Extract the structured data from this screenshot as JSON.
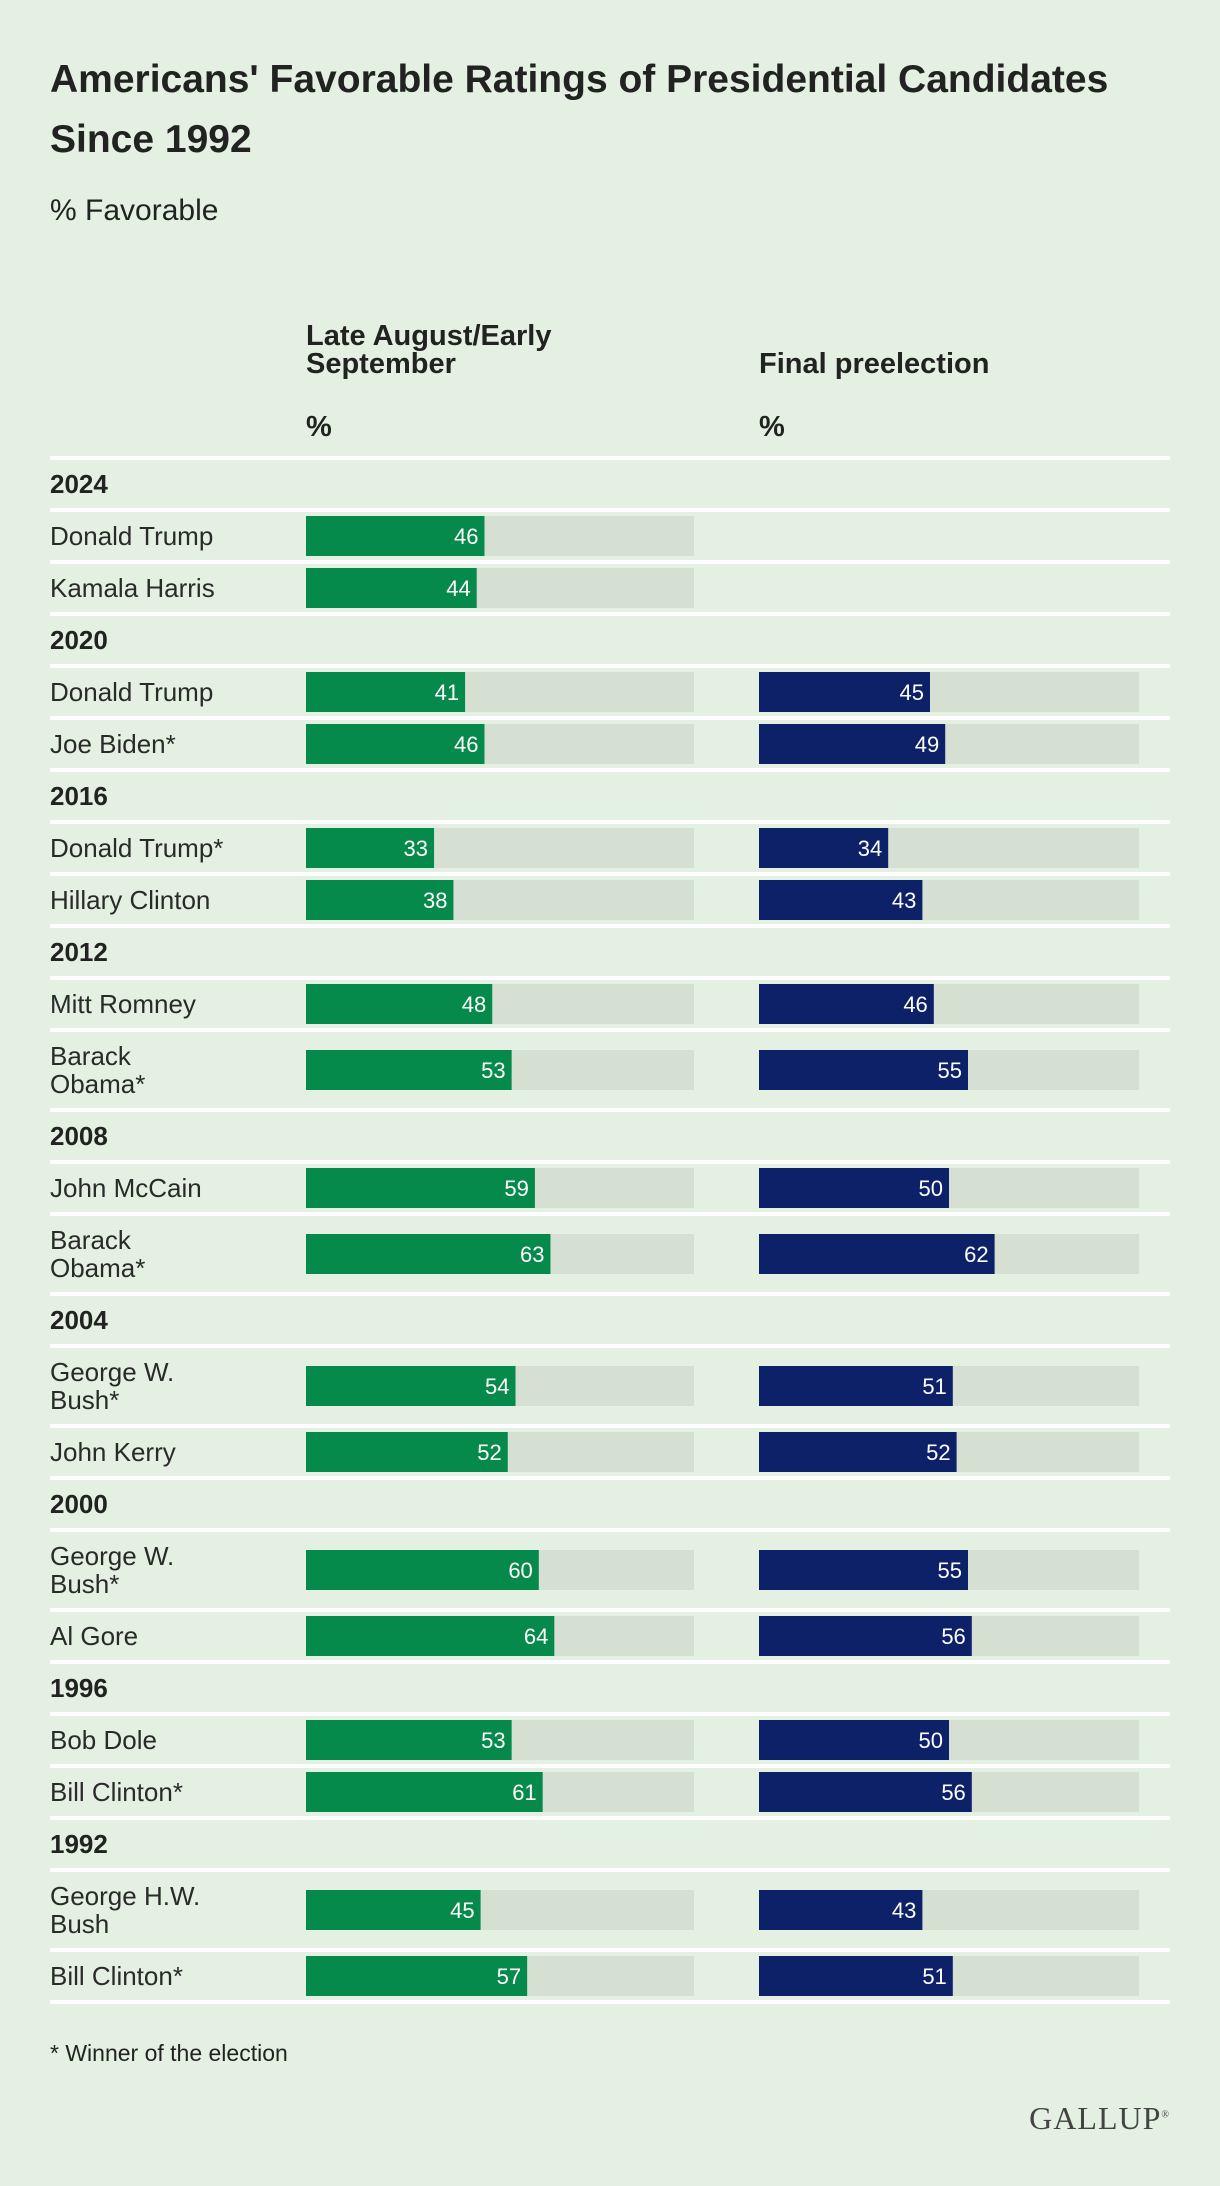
{
  "title": "Americans' Favorable Ratings of Presidential Candidates Since 1992",
  "subtitle": "% Favorable",
  "footnote": "* Winner of the election",
  "logo": "GALLUP",
  "colors": {
    "background": "#e4f1e2",
    "green": "#068a4c",
    "navy": "#0d2168",
    "track": "#d5e0d2",
    "divider": "#ffffff"
  },
  "chart_data": {
    "type": "bar",
    "orientation": "horizontal",
    "value_max": 100,
    "series": [
      {
        "name": "Late August/Early September",
        "unit_label": "%",
        "color": "#068a4c"
      },
      {
        "name": "Final preelection",
        "unit_label": "%",
        "color": "#0d2168"
      }
    ],
    "groups": [
      {
        "year": "2024",
        "rows": [
          {
            "name": "Donald Trump",
            "values": [
              46,
              null
            ]
          },
          {
            "name": "Kamala Harris",
            "values": [
              44,
              null
            ]
          }
        ]
      },
      {
        "year": "2020",
        "rows": [
          {
            "name": "Donald Trump",
            "values": [
              41,
              45
            ]
          },
          {
            "name": "Joe Biden*",
            "values": [
              46,
              49
            ]
          }
        ]
      },
      {
        "year": "2016",
        "rows": [
          {
            "name": "Donald Trump*",
            "values": [
              33,
              34
            ]
          },
          {
            "name": "Hillary Clinton",
            "values": [
              38,
              43
            ]
          }
        ]
      },
      {
        "year": "2012",
        "rows": [
          {
            "name": "Mitt Romney",
            "values": [
              48,
              46
            ]
          },
          {
            "name": "Barack\nObama*",
            "values": [
              53,
              55
            ]
          }
        ]
      },
      {
        "year": "2008",
        "rows": [
          {
            "name": "John McCain",
            "values": [
              59,
              50
            ]
          },
          {
            "name": "Barack\nObama*",
            "values": [
              63,
              62
            ]
          }
        ]
      },
      {
        "year": "2004",
        "rows": [
          {
            "name": "George W.\nBush*",
            "values": [
              54,
              51
            ]
          },
          {
            "name": "John Kerry",
            "values": [
              52,
              52
            ]
          }
        ]
      },
      {
        "year": "2000",
        "rows": [
          {
            "name": "George W.\nBush*",
            "values": [
              60,
              55
            ]
          },
          {
            "name": "Al Gore",
            "values": [
              64,
              56
            ]
          }
        ]
      },
      {
        "year": "1996",
        "rows": [
          {
            "name": "Bob Dole",
            "values": [
              53,
              50
            ]
          },
          {
            "name": "Bill Clinton*",
            "values": [
              61,
              56
            ]
          }
        ]
      },
      {
        "year": "1992",
        "rows": [
          {
            "name": "George H.W.\nBush",
            "values": [
              45,
              43
            ]
          },
          {
            "name": "Bill Clinton*",
            "values": [
              57,
              51
            ]
          }
        ]
      }
    ]
  }
}
